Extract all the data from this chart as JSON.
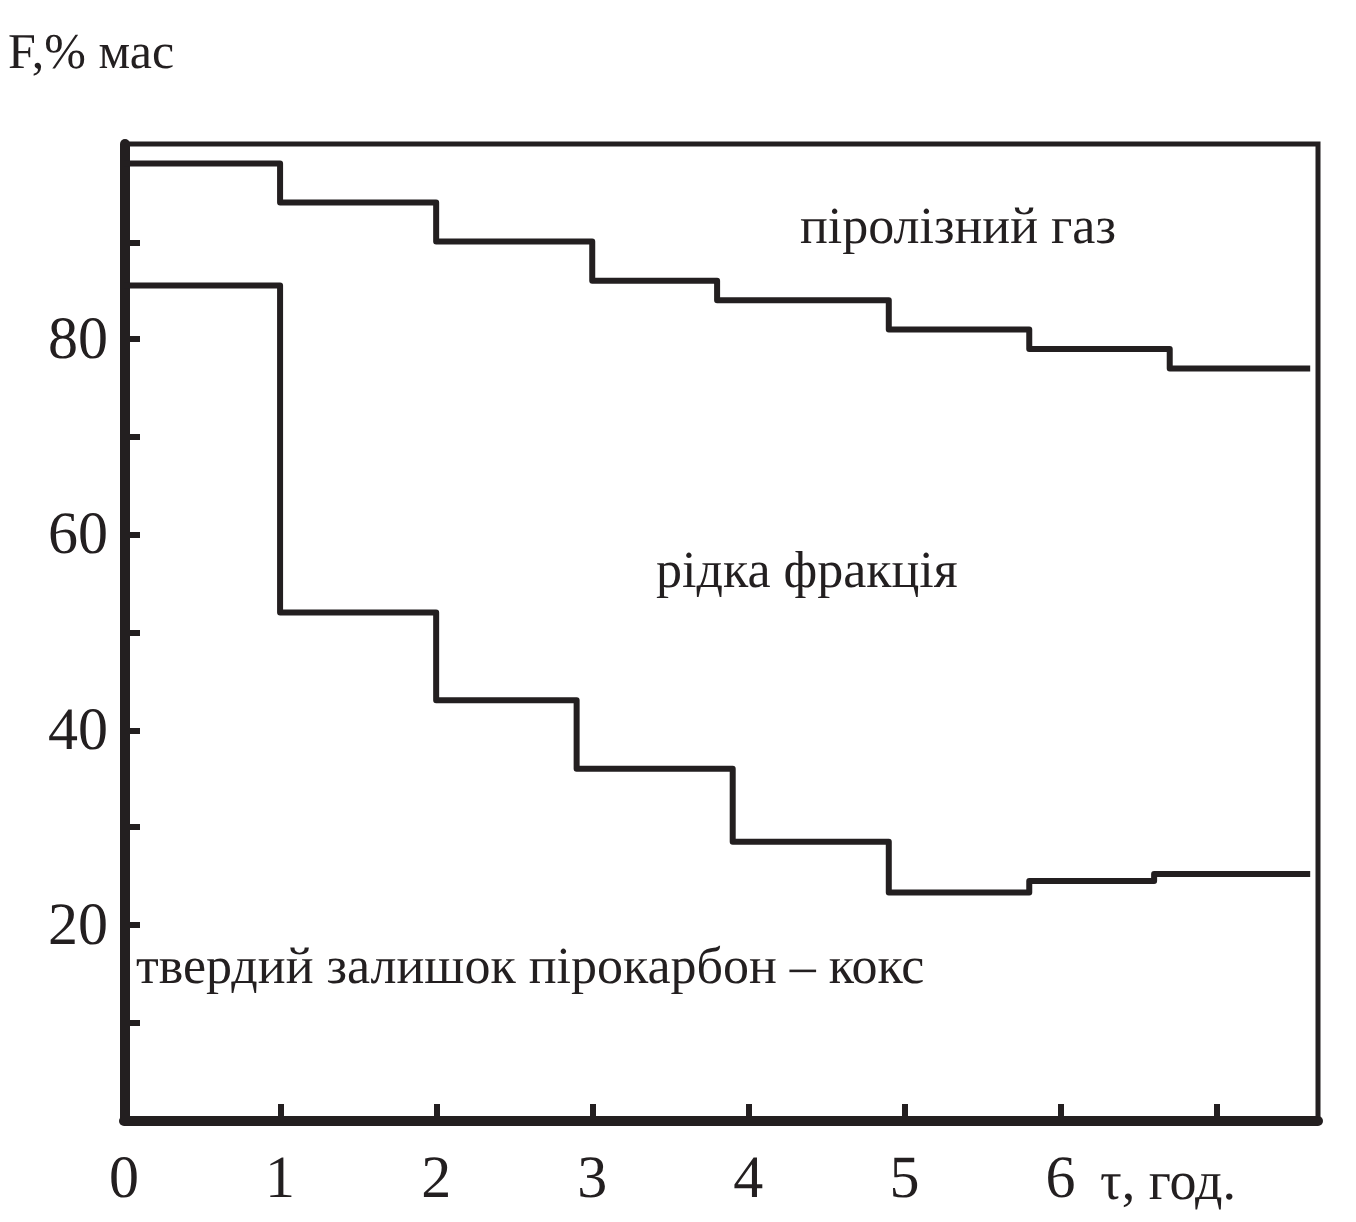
{
  "chart_data": {
    "type": "step",
    "xlabel": "τ, год.",
    "ylabel": "F,% мас",
    "annotations": [
      "піролізний газ",
      "рідка фракція",
      "твердий залишок пірокарбон – кокс"
    ],
    "series": [
      {
        "color": "#231f20",
        "x": [
          0,
          1,
          2,
          3,
          3.8,
          4.9,
          5.8,
          6.7,
          7.6
        ],
        "values": [
          98,
          94,
          90,
          86,
          84,
          81,
          79,
          77,
          77
        ]
      },
      {
        "color": "#231f20",
        "x": [
          0,
          1,
          2,
          2.9,
          3.9,
          4.9,
          5.8,
          6.6,
          7.6
        ],
        "values": [
          85.5,
          52,
          43,
          36,
          28.5,
          23.3,
          24.5,
          25.2,
          25.2
        ]
      }
    ],
    "xlim": [
      0,
      7.65
    ],
    "xticks": [
      0,
      1,
      2,
      3,
      4,
      5,
      6,
      {
        "value": 7,
        "label": null
      }
    ],
    "ylim": [
      0,
      100
    ],
    "yticks": [
      {
        "value": 10,
        "label": null
      },
      20,
      {
        "value": 30,
        "label": null
      },
      40,
      {
        "value": 50,
        "label": null
      },
      60,
      {
        "value": 70,
        "label": null
      },
      80,
      {
        "value": 90,
        "label": null
      }
    ],
    "grid": false,
    "marker": "none",
    "line_style": "solid"
  }
}
